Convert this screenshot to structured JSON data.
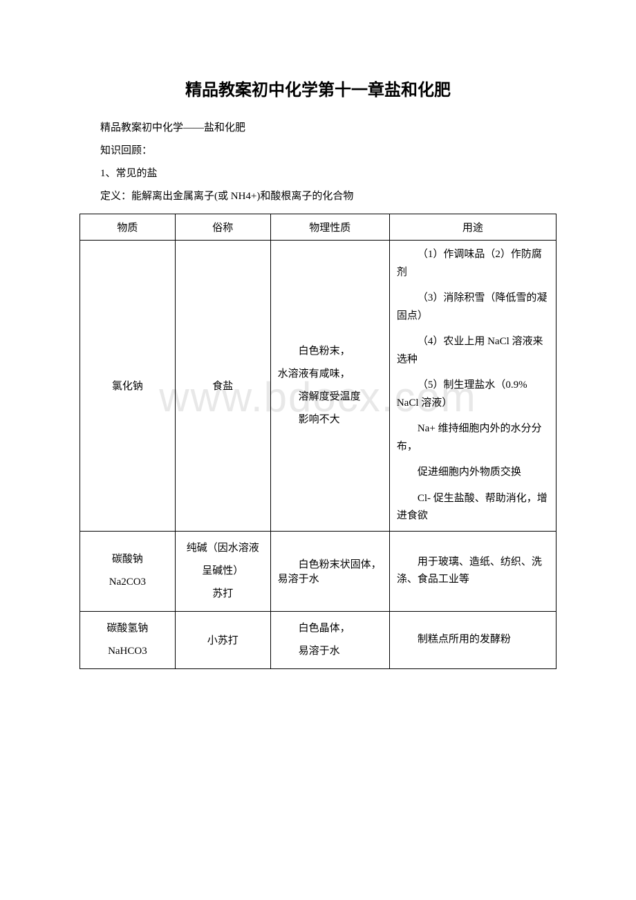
{
  "watermark": "www.bdocx.com",
  "title": "精品教案初中化学第十一章盐和化肥",
  "intro": {
    "line1": "精品教案初中化学——盐和化肥",
    "line2": "知识回顾：",
    "line3": "1、常见的盐",
    "line4": "定义：能解离出金属离子(或 NH4+)和酸根离子的化合物"
  },
  "table": {
    "headers": {
      "col1": "物质",
      "col2": "俗称",
      "col3": "物理性质",
      "col4": "用途"
    },
    "rows": [
      {
        "col1": "氯化钠",
        "col2": "食盐",
        "col3_l1": "白色粉末，",
        "col3_l2": "水溶液有咸味，",
        "col3_l3": "溶解度受温度",
        "col3_l4": "影响不大",
        "col4_p1": "（1）作调味品（2）作防腐剂",
        "col4_p2": "（3）消除积雪（降低雪的凝固点）",
        "col4_p3": "（4）农业上用 NaCl 溶液来选种",
        "col4_p4": "（5）制生理盐水（0.9% NaCl 溶液）",
        "col4_p5": "Na+ 维持细胞内外的水分分布，",
        "col4_p6": "促进细胞内外物质交换",
        "col4_p7": "Cl- 促生盐酸、帮助消化，增进食欲"
      },
      {
        "col1_l1": "碳酸钠",
        "col1_l2": "Na2CO3",
        "col2_l1": "纯碱（因水溶液呈碱性）",
        "col2_l2": "苏打",
        "col3": "白色粉末状固体，易溶于水",
        "col4": "用于玻璃、造纸、纺织、洗涤、食品工业等"
      },
      {
        "col1_l1": "碳酸氢钠",
        "col1_l2": "NaHCO3",
        "col2": "小苏打",
        "col3_l1": "白色晶体，",
        "col3_l2": "易溶于水",
        "col4": "制糕点所用的发酵粉"
      }
    ]
  }
}
